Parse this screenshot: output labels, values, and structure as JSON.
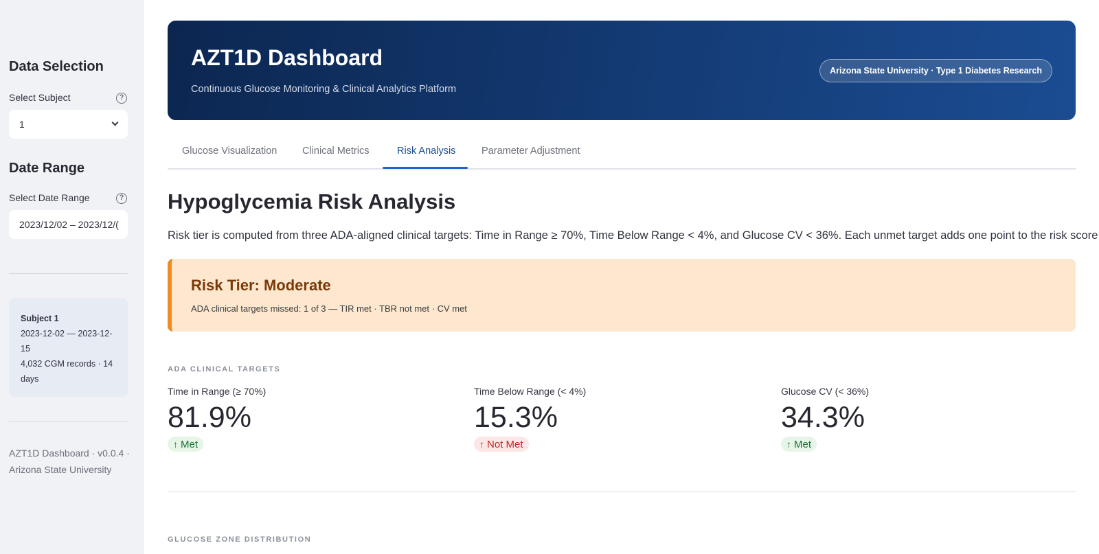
{
  "sidebar": {
    "data_selection_title": "Data Selection",
    "subject_label": "Select Subject",
    "subject_value": "1",
    "date_range_title": "Date Range",
    "date_range_label": "Select Date Range",
    "date_range_value": "2023/12/02 – 2023/12/(",
    "info_card": {
      "title": "Subject 1",
      "line1": "2023-12-02 — 2023-12-15",
      "line2": "4,032 CGM records · 14 days"
    },
    "footer": "AZT1D Dashboard · v0.0.4 · Arizona State University"
  },
  "header": {
    "title": "AZT1D Dashboard",
    "subtitle": "Continuous Glucose Monitoring & Clinical Analytics Platform",
    "badge": "Arizona State University · Type 1 Diabetes Research"
  },
  "tabs": [
    {
      "label": "Glucose Visualization",
      "active": false
    },
    {
      "label": "Clinical Metrics",
      "active": false
    },
    {
      "label": "Risk Analysis",
      "active": true
    },
    {
      "label": "Parameter Adjustment",
      "active": false
    }
  ],
  "main": {
    "title": "Hypoglycemia Risk Analysis",
    "description": "Risk tier is computed from three ADA-aligned clinical targets: Time in Range ≥ 70%, Time Below Range < 4%, and Glucose CV < 36%. Each unmet target adds one point to the risk score.",
    "risk": {
      "title": "Risk Tier: Moderate",
      "summary": "ADA clinical targets missed: 1 of 3  —  TIR met  ·  TBR not met  ·  CV met"
    },
    "targets_section": "ADA CLINICAL TARGETS",
    "metrics": [
      {
        "label": "Time in Range (≥ 70%)",
        "value": "81.9%",
        "status": "Met",
        "arrow": "↑"
      },
      {
        "label": "Time Below Range (< 4%)",
        "value": "15.3%",
        "status": "Not Met",
        "arrow": "↑"
      },
      {
        "label": "Glucose CV (< 36%)",
        "value": "34.3%",
        "status": "Met",
        "arrow": "↑"
      }
    ],
    "zone_section": "GLUCOSE ZONE DISTRIBUTION"
  },
  "colors": {
    "accent": "#1f62d1",
    "banner": "#0c2650",
    "risk_bg": "#fde8cf",
    "risk_border": "#f08a24",
    "met": "#177233",
    "not_met": "#c62828"
  }
}
